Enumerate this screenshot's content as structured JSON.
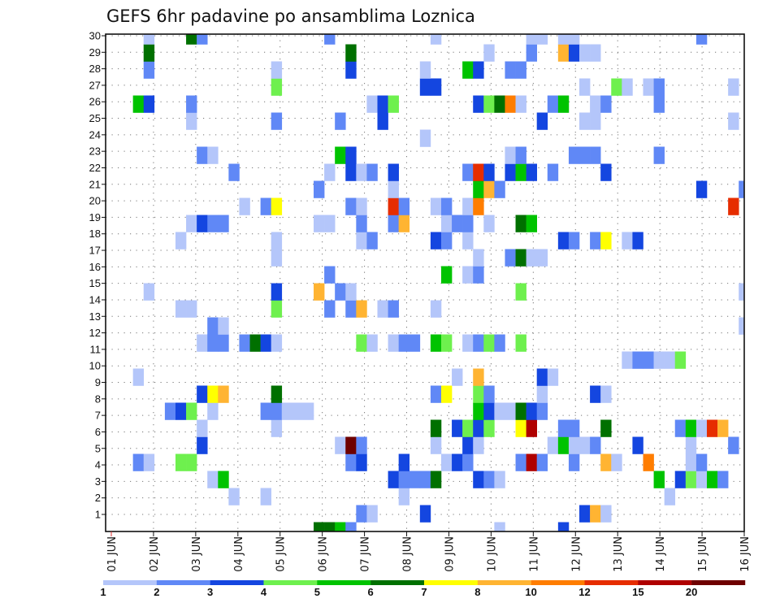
{
  "chart_data": {
    "type": "heatmap",
    "title": "GEFS 6hr padavine po ansamblima Loznica",
    "xlabel": "",
    "ylabel": "",
    "x_step_hours": 6,
    "x_ticks": [
      "01 JUN",
      "02 JUN",
      "03 JUN",
      "04 JUN",
      "05 JUN",
      "06 JUN",
      "07 JUN",
      "08 JUN",
      "09 JUN",
      "10 JUN",
      "11 JUN",
      "12 JUN",
      "13 JUN",
      "14 JUN",
      "15 JUN",
      "16 JUN"
    ],
    "y_ticks": [
      "1",
      "2",
      "3",
      "4",
      "5",
      "6",
      "7",
      "8",
      "9",
      "10",
      "11",
      "12",
      "13",
      "14",
      "15",
      "16",
      "17",
      "18",
      "19",
      "20",
      "21",
      "22",
      "23",
      "24",
      "25",
      "26",
      "27",
      "28",
      "29",
      "30"
    ],
    "ylim": [
      0,
      30
    ],
    "grid": true,
    "legend_placement": "bottom",
    "colorbar": {
      "boundaries": [
        "1",
        "2",
        "3",
        "4",
        "5",
        "6",
        "7",
        "8",
        "10",
        "12",
        "15",
        "20"
      ],
      "colors": [
        "#b4c6fa",
        "#6088f6",
        "#1446e0",
        "#6ef04e",
        "#00c300",
        "#007000",
        "#ffff00",
        "#ffb432",
        "#ff7d00",
        "#e62d00",
        "#af0000",
        "#6e0000"
      ]
    },
    "cell_format": "[6hr step index from 01 JUN 00Z, colour class index]",
    "members": {
      "30": [
        [
          3,
          0
        ],
        [
          7,
          5
        ],
        [
          8,
          1
        ],
        [
          20,
          1
        ],
        [
          30,
          0
        ],
        [
          39,
          0
        ],
        [
          40,
          0
        ],
        [
          42,
          0
        ],
        [
          43,
          0
        ],
        [
          55,
          1
        ]
      ],
      "29": [
        [
          3,
          5
        ],
        [
          22,
          5
        ],
        [
          35,
          0
        ],
        [
          39,
          1
        ],
        [
          42,
          7
        ],
        [
          43,
          2
        ],
        [
          44,
          0
        ],
        [
          45,
          0
        ]
      ],
      "28": [
        [
          3,
          1
        ],
        [
          15,
          0
        ],
        [
          22,
          2
        ],
        [
          29,
          0
        ],
        [
          33,
          4
        ],
        [
          34,
          2
        ],
        [
          37,
          1
        ],
        [
          38,
          1
        ]
      ],
      "27": [
        [
          15,
          3
        ],
        [
          29,
          2
        ],
        [
          30,
          2
        ],
        [
          44,
          0
        ],
        [
          47,
          3
        ],
        [
          48,
          0
        ],
        [
          50,
          0
        ],
        [
          51,
          1
        ],
        [
          58,
          0
        ]
      ],
      "26": [
        [
          2,
          4
        ],
        [
          3,
          2
        ],
        [
          7,
          1
        ],
        [
          24,
          0
        ],
        [
          25,
          2
        ],
        [
          26,
          3
        ],
        [
          34,
          2
        ],
        [
          35,
          3
        ],
        [
          36,
          5
        ],
        [
          37,
          8
        ],
        [
          38,
          0
        ],
        [
          41,
          1
        ],
        [
          42,
          4
        ],
        [
          45,
          0
        ],
        [
          46,
          1
        ],
        [
          51,
          1
        ]
      ],
      "25": [
        [
          7,
          0
        ],
        [
          15,
          1
        ],
        [
          21,
          1
        ],
        [
          25,
          2
        ],
        [
          40,
          2
        ],
        [
          44,
          0
        ],
        [
          45,
          0
        ],
        [
          58,
          0
        ]
      ],
      "24": [
        [
          29,
          0
        ]
      ],
      "23": [
        [
          8,
          1
        ],
        [
          9,
          0
        ],
        [
          21,
          4
        ],
        [
          22,
          2
        ],
        [
          37,
          0
        ],
        [
          38,
          1
        ],
        [
          43,
          1
        ],
        [
          44,
          1
        ],
        [
          45,
          1
        ],
        [
          51,
          1
        ]
      ],
      "22": [
        [
          11,
          1
        ],
        [
          20,
          0
        ],
        [
          22,
          2
        ],
        [
          23,
          0
        ],
        [
          24,
          1
        ],
        [
          26,
          2
        ],
        [
          33,
          1
        ],
        [
          34,
          9
        ],
        [
          35,
          2
        ],
        [
          37,
          2
        ],
        [
          38,
          4
        ],
        [
          39,
          2
        ],
        [
          41,
          1
        ],
        [
          46,
          2
        ]
      ],
      "21": [
        [
          19,
          1
        ],
        [
          26,
          0
        ],
        [
          34,
          4
        ],
        [
          35,
          7
        ],
        [
          36,
          1
        ],
        [
          55,
          2
        ],
        [
          59,
          1
        ]
      ],
      "20": [
        [
          12,
          0
        ],
        [
          14,
          1
        ],
        [
          15,
          6
        ],
        [
          22,
          1
        ],
        [
          23,
          0
        ],
        [
          26,
          9
        ],
        [
          27,
          1
        ],
        [
          30,
          0
        ],
        [
          31,
          1
        ],
        [
          33,
          0
        ],
        [
          34,
          8
        ],
        [
          58,
          9
        ]
      ],
      "19": [
        [
          7,
          0
        ],
        [
          8,
          2
        ],
        [
          9,
          1
        ],
        [
          10,
          1
        ],
        [
          19,
          0
        ],
        [
          20,
          0
        ],
        [
          23,
          1
        ],
        [
          26,
          1
        ],
        [
          27,
          7
        ],
        [
          31,
          0
        ],
        [
          32,
          1
        ],
        [
          33,
          1
        ],
        [
          35,
          0
        ],
        [
          38,
          5
        ],
        [
          39,
          4
        ]
      ],
      "18": [
        [
          6,
          0
        ],
        [
          15,
          0
        ],
        [
          23,
          0
        ],
        [
          24,
          1
        ],
        [
          30,
          2
        ],
        [
          31,
          1
        ],
        [
          33,
          0
        ],
        [
          42,
          2
        ],
        [
          43,
          1
        ],
        [
          45,
          1
        ],
        [
          46,
          6
        ],
        [
          48,
          0
        ],
        [
          49,
          2
        ]
      ],
      "17": [
        [
          15,
          0
        ],
        [
          34,
          0
        ],
        [
          37,
          1
        ],
        [
          38,
          5
        ],
        [
          39,
          0
        ],
        [
          40,
          0
        ]
      ],
      "16": [
        [
          20,
          1
        ],
        [
          31,
          4
        ],
        [
          33,
          0
        ],
        [
          34,
          1
        ]
      ],
      "15": [
        [
          3,
          0
        ],
        [
          15,
          2
        ],
        [
          19,
          7
        ],
        [
          21,
          1
        ],
        [
          22,
          0
        ],
        [
          38,
          3
        ],
        [
          59,
          0
        ]
      ],
      "14": [
        [
          6,
          0
        ],
        [
          7,
          0
        ],
        [
          15,
          3
        ],
        [
          20,
          1
        ],
        [
          22,
          1
        ],
        [
          23,
          7
        ],
        [
          25,
          0
        ],
        [
          26,
          1
        ],
        [
          30,
          0
        ]
      ],
      "13": [
        [
          9,
          1
        ],
        [
          10,
          0
        ],
        [
          59,
          0
        ]
      ],
      "12": [
        [
          8,
          0
        ],
        [
          9,
          1
        ],
        [
          10,
          1
        ],
        [
          12,
          1
        ],
        [
          13,
          5
        ],
        [
          14,
          2
        ],
        [
          15,
          0
        ],
        [
          23,
          3
        ],
        [
          24,
          0
        ],
        [
          26,
          0
        ],
        [
          27,
          1
        ],
        [
          28,
          1
        ],
        [
          30,
          4
        ],
        [
          31,
          3
        ],
        [
          33,
          0
        ],
        [
          34,
          1
        ],
        [
          35,
          3
        ],
        [
          36,
          1
        ],
        [
          38,
          3
        ]
      ],
      "11": [
        [
          48,
          0
        ],
        [
          49,
          1
        ],
        [
          50,
          1
        ],
        [
          51,
          0
        ],
        [
          52,
          0
        ],
        [
          53,
          3
        ]
      ],
      "10": [
        [
          2,
          0
        ],
        [
          32,
          0
        ],
        [
          34,
          7
        ],
        [
          40,
          2
        ],
        [
          41,
          0
        ]
      ],
      "9": [
        [
          8,
          2
        ],
        [
          9,
          6
        ],
        [
          10,
          7
        ],
        [
          15,
          5
        ],
        [
          30,
          1
        ],
        [
          31,
          6
        ],
        [
          34,
          3
        ],
        [
          35,
          1
        ],
        [
          40,
          0
        ],
        [
          45,
          2
        ],
        [
          46,
          0
        ]
      ],
      "8": [
        [
          5,
          1
        ],
        [
          6,
          2
        ],
        [
          7,
          3
        ],
        [
          9,
          0
        ],
        [
          14,
          1
        ],
        [
          15,
          1
        ],
        [
          16,
          0
        ],
        [
          17,
          0
        ],
        [
          18,
          0
        ],
        [
          34,
          4
        ],
        [
          35,
          2
        ],
        [
          36,
          0
        ],
        [
          37,
          0
        ],
        [
          38,
          5
        ],
        [
          39,
          2
        ],
        [
          40,
          1
        ]
      ],
      "7": [
        [
          8,
          0
        ],
        [
          15,
          0
        ],
        [
          30,
          5
        ],
        [
          32,
          2
        ],
        [
          33,
          3
        ],
        [
          34,
          2
        ],
        [
          35,
          3
        ],
        [
          38,
          6
        ],
        [
          39,
          10
        ],
        [
          42,
          1
        ],
        [
          43,
          1
        ],
        [
          46,
          5
        ],
        [
          53,
          1
        ],
        [
          54,
          4
        ],
        [
          55,
          0
        ],
        [
          56,
          9
        ],
        [
          57,
          7
        ]
      ],
      "6": [
        [
          8,
          2
        ],
        [
          21,
          0
        ],
        [
          22,
          11
        ],
        [
          23,
          1
        ],
        [
          30,
          0
        ],
        [
          33,
          2
        ],
        [
          34,
          0
        ],
        [
          41,
          0
        ],
        [
          42,
          4
        ],
        [
          43,
          0
        ],
        [
          44,
          0
        ],
        [
          45,
          1
        ],
        [
          49,
          2
        ],
        [
          54,
          0
        ],
        [
          58,
          1
        ]
      ],
      "5": [
        [
          2,
          1
        ],
        [
          3,
          0
        ],
        [
          6,
          3
        ],
        [
          7,
          3
        ],
        [
          22,
          1
        ],
        [
          23,
          2
        ],
        [
          27,
          2
        ],
        [
          31,
          0
        ],
        [
          32,
          2
        ],
        [
          33,
          1
        ],
        [
          38,
          1
        ],
        [
          39,
          10
        ],
        [
          40,
          1
        ],
        [
          43,
          1
        ],
        [
          46,
          7
        ],
        [
          47,
          0
        ],
        [
          50,
          8
        ],
        [
          54,
          0
        ],
        [
          55,
          1
        ]
      ],
      "4": [
        [
          9,
          0
        ],
        [
          10,
          4
        ],
        [
          26,
          2
        ],
        [
          27,
          1
        ],
        [
          28,
          1
        ],
        [
          29,
          1
        ],
        [
          30,
          5
        ],
        [
          34,
          2
        ],
        [
          35,
          1
        ],
        [
          36,
          0
        ],
        [
          51,
          4
        ],
        [
          53,
          2
        ],
        [
          54,
          3
        ],
        [
          55,
          0
        ],
        [
          56,
          4
        ],
        [
          57,
          1
        ]
      ],
      "3": [
        [
          11,
          0
        ],
        [
          14,
          0
        ],
        [
          27,
          0
        ],
        [
          52,
          0
        ]
      ],
      "2": [
        [
          23,
          1
        ],
        [
          24,
          0
        ],
        [
          29,
          2
        ],
        [
          44,
          2
        ],
        [
          45,
          7
        ],
        [
          46,
          0
        ]
      ],
      "1": [
        [
          19,
          5
        ],
        [
          20,
          5
        ],
        [
          21,
          4
        ],
        [
          22,
          1
        ],
        [
          36,
          0
        ],
        [
          42,
          2
        ]
      ]
    }
  }
}
